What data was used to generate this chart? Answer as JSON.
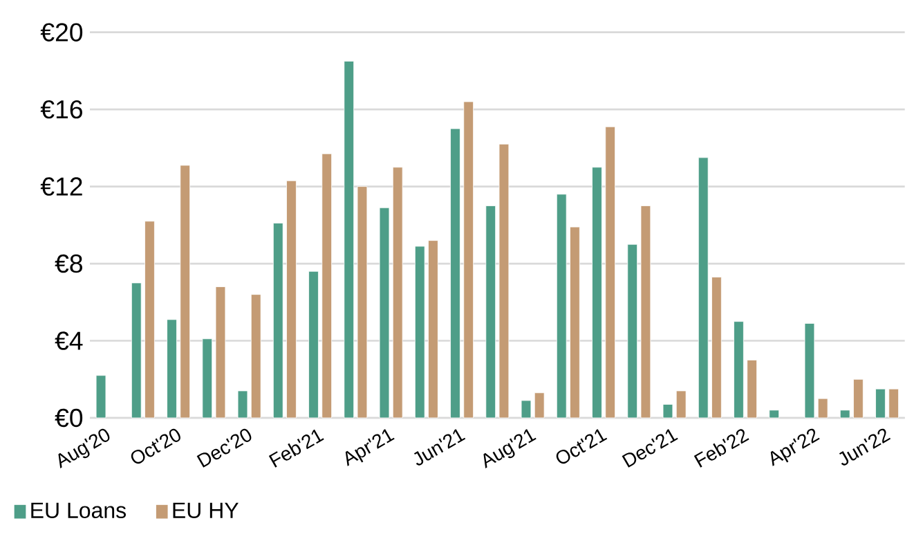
{
  "chart_data": {
    "type": "bar",
    "categories": [
      "Aug'20",
      null,
      "Oct'20",
      null,
      "Dec'20",
      null,
      "Feb'21",
      null,
      "Apr'21",
      null,
      "Jun'21",
      null,
      "Aug'21",
      null,
      "Oct'21",
      null,
      "Dec'21",
      null,
      "Feb'22",
      null,
      "Apr'22",
      null,
      "Jun'22"
    ],
    "series": [
      {
        "name": "EU Loans",
        "color": "#4e9e88",
        "values": [
          2.2,
          7.0,
          5.1,
          4.1,
          1.4,
          10.1,
          7.6,
          18.5,
          10.9,
          8.9,
          15.0,
          11.0,
          0.9,
          11.6,
          13.0,
          9.0,
          0.7,
          13.5,
          5.0,
          0.4,
          4.9,
          0.4,
          1.5
        ]
      },
      {
        "name": "EU HY",
        "color": "#c49b74",
        "values": [
          null,
          10.2,
          13.1,
          6.8,
          6.4,
          12.3,
          13.7,
          12.0,
          13.0,
          9.2,
          16.4,
          14.2,
          1.3,
          9.9,
          15.1,
          11.0,
          1.4,
          7.3,
          3.0,
          null,
          1.0,
          2.0,
          1.5
        ]
      }
    ],
    "ylim": [
      0,
      20
    ],
    "yticks": [
      {
        "value": 0,
        "label": "€0"
      },
      {
        "value": 4,
        "label": "€4"
      },
      {
        "value": 8,
        "label": "€8"
      },
      {
        "value": 12,
        "label": "€12"
      },
      {
        "value": 16,
        "label": "€16"
      },
      {
        "value": 20,
        "label": "€20"
      }
    ],
    "grid": "y",
    "legend": "bottom left"
  }
}
